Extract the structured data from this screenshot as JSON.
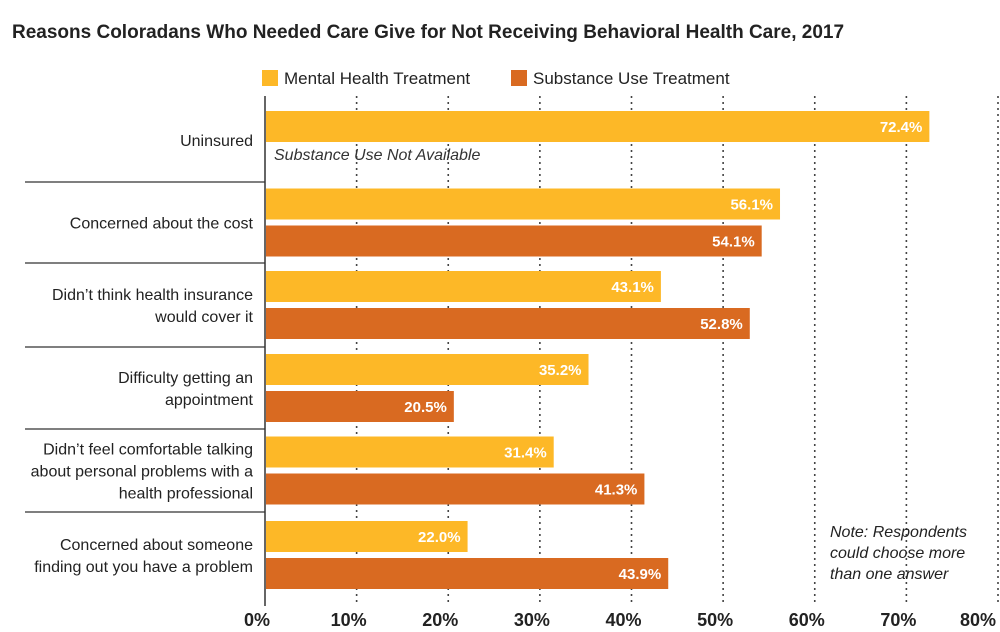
{
  "chart_data": {
    "type": "bar",
    "orientation": "horizontal",
    "title": "Reasons Coloradans Who Needed Care Give for Not Receiving Behavioral Health Care, 2017",
    "categories": [
      [
        "Uninsured"
      ],
      [
        "Concerned about the cost"
      ],
      [
        "Didn’t think health insurance",
        "would cover it"
      ],
      [
        "Difficulty getting an",
        "appointment"
      ],
      [
        "Didn’t feel comfortable talking",
        "about personal problems with a",
        "health professional"
      ],
      [
        "Concerned about someone",
        "finding out you have a problem"
      ]
    ],
    "series": [
      {
        "name": "Mental Health Treatment",
        "color": "#FDB827",
        "values": [
          72.4,
          56.1,
          43.1,
          35.2,
          31.4,
          22.0
        ]
      },
      {
        "name": "Substance Use Treatment",
        "color": "#D96A21",
        "values": [
          null,
          54.1,
          52.8,
          20.5,
          41.3,
          43.9
        ]
      }
    ],
    "value_labels": [
      [
        "72.4%",
        "56.1%",
        "43.1%",
        "35.2%",
        "31.4%",
        "22.0%"
      ],
      [
        null,
        "54.1%",
        "52.8%",
        "20.5%",
        "41.3%",
        "43.9%"
      ]
    ],
    "xlim": [
      0,
      80
    ],
    "xticks": [
      0,
      10,
      20,
      30,
      40,
      50,
      60,
      70,
      80
    ],
    "xtick_labels": [
      "0%",
      "10%",
      "20%",
      "30%",
      "40%",
      "50%",
      "60%",
      "70%",
      "80%"
    ],
    "grid": "vertical dotted",
    "legend_position": "top",
    "missing_note": "Substance Use Not Available",
    "note_lines": [
      "Note: Respondents",
      "could choose more",
      "than one answer"
    ]
  }
}
